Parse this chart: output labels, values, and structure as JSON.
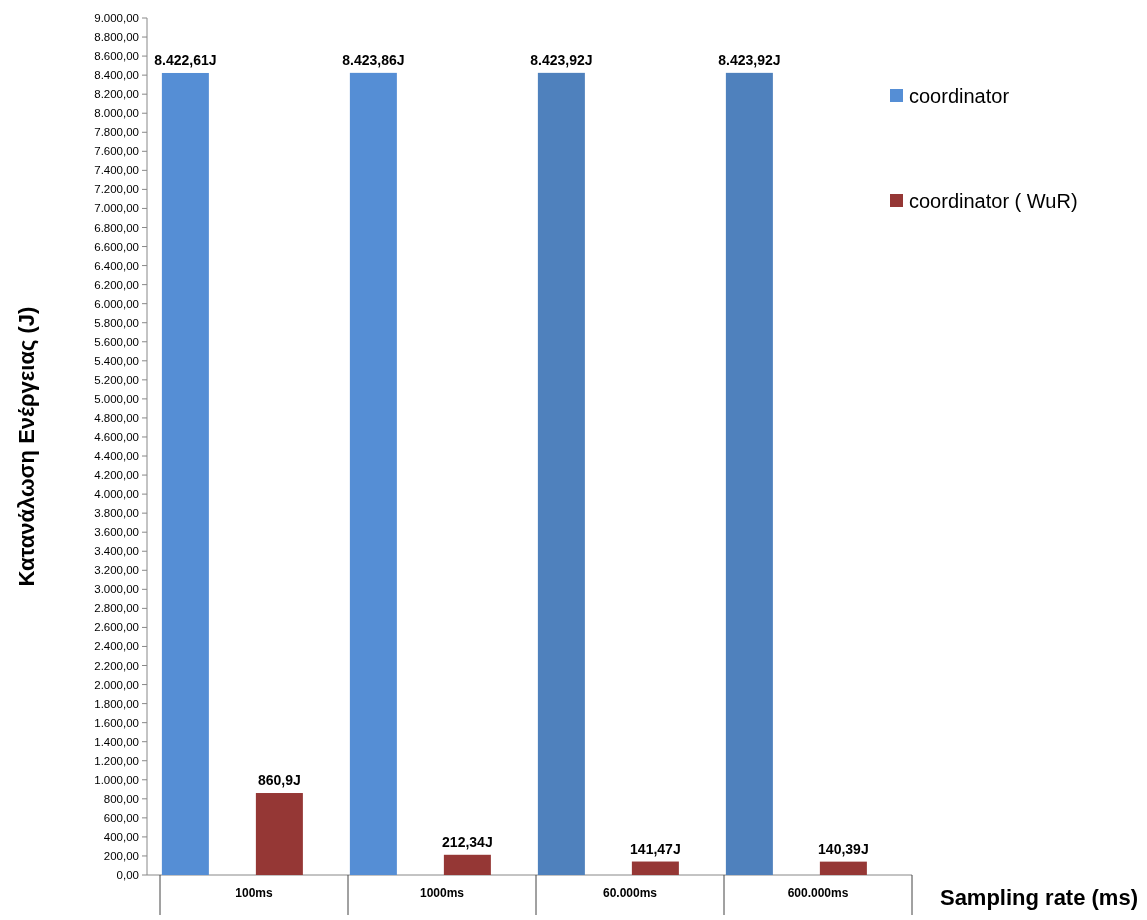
{
  "chart_data": {
    "type": "bar",
    "xlabel": "Sampling rate (ms)",
    "ylabel": "Κατανάλωση Ενέργειας (J)",
    "categories": [
      "100ms",
      "1000ms",
      "60.000ms",
      "600.000ms"
    ],
    "series": [
      {
        "name": "coordinator",
        "color": "#558ed5",
        "colors": [
          "#558ed5",
          "#558ed5",
          "#4f81bd",
          "#4f81bd"
        ],
        "values": [
          8422.61,
          8423.86,
          8423.92,
          8423.92
        ],
        "value_labels": [
          "8.422,61J",
          "8.423,86J",
          "8.423,92J",
          "8.423,92J"
        ]
      },
      {
        "name": "coordinator ( WuR)",
        "color": "#953735",
        "values": [
          860.9,
          212.34,
          141.47,
          140.39
        ],
        "value_labels": [
          "860,9J",
          "212,34J",
          "141,47J",
          "140,39J"
        ]
      }
    ],
    "ylim": [
      0,
      9000
    ],
    "yticks": [
      {
        "value": 0,
        "label": "0,00"
      },
      {
        "value": 200,
        "label": "200,00"
      },
      {
        "value": 400,
        "label": "400,00"
      },
      {
        "value": 600,
        "label": "600,00"
      },
      {
        "value": 800,
        "label": "800,00"
      },
      {
        "value": 1000,
        "label": "1.000,00"
      },
      {
        "value": 1200,
        "label": "1.200,00"
      },
      {
        "value": 1400,
        "label": "1.400,00"
      },
      {
        "value": 1600,
        "label": "1.600,00"
      },
      {
        "value": 1800,
        "label": "1.800,00"
      },
      {
        "value": 2000,
        "label": "2.000,00"
      },
      {
        "value": 2200,
        "label": "2.200,00"
      },
      {
        "value": 2400,
        "label": "2.400,00"
      },
      {
        "value": 2600,
        "label": "2.600,00"
      },
      {
        "value": 2800,
        "label": "2.800,00"
      },
      {
        "value": 3000,
        "label": "3.000,00"
      },
      {
        "value": 3200,
        "label": "3.200,00"
      },
      {
        "value": 3400,
        "label": "3.400,00"
      },
      {
        "value": 3600,
        "label": "3.600,00"
      },
      {
        "value": 3800,
        "label": "3.800,00"
      },
      {
        "value": 4000,
        "label": "4.000,00"
      },
      {
        "value": 4200,
        "label": "4.200,00"
      },
      {
        "value": 4400,
        "label": "4.400,00"
      },
      {
        "value": 4600,
        "label": "4.600,00"
      },
      {
        "value": 4800,
        "label": "4.800,00"
      },
      {
        "value": 5000,
        "label": "5.000,00"
      },
      {
        "value": 5200,
        "label": "5.200,00"
      },
      {
        "value": 5400,
        "label": "5.400,00"
      },
      {
        "value": 5600,
        "label": "5.600,00"
      },
      {
        "value": 5800,
        "label": "5.800,00"
      },
      {
        "value": 6000,
        "label": "6.000,00"
      },
      {
        "value": 6200,
        "label": "6.200,00"
      },
      {
        "value": 6400,
        "label": "6.400,00"
      },
      {
        "value": 6600,
        "label": "6.600,00"
      },
      {
        "value": 6800,
        "label": "6.800,00"
      },
      {
        "value": 7000,
        "label": "7.000,00"
      },
      {
        "value": 7200,
        "label": "7.200,00"
      },
      {
        "value": 7400,
        "label": "7.400,00"
      },
      {
        "value": 7600,
        "label": "7.600,00"
      },
      {
        "value": 7800,
        "label": "7.800,00"
      },
      {
        "value": 8000,
        "label": "8.000,00"
      },
      {
        "value": 8200,
        "label": "8.200,00"
      },
      {
        "value": 8400,
        "label": "8.400,00"
      },
      {
        "value": 8600,
        "label": "8.600,00"
      },
      {
        "value": 8800,
        "label": "8.800,00"
      },
      {
        "value": 9000,
        "label": "9.000,00"
      }
    ],
    "grid": false,
    "legend": "top right"
  }
}
